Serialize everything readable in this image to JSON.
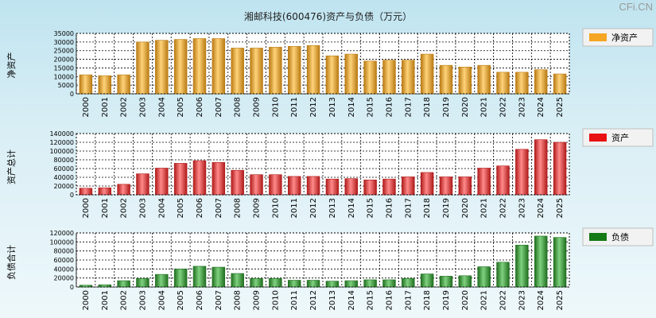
{
  "title": "湘邮科技(600476)资产与负债（万元）",
  "brand": "CFi.CN",
  "chart_data": [
    {
      "type": "bar",
      "ylabel": "净资产",
      "legend": "净资产",
      "legend_color": "#f5a623",
      "bar_light": "#ffd37a",
      "bar_dark": "#b97a12",
      "ylim": [
        0,
        35000
      ],
      "yticks": [
        0,
        5000,
        10000,
        15000,
        20000,
        25000,
        30000,
        35000
      ],
      "categories": [
        "2000",
        "2001",
        "2002",
        "2003",
        "2004",
        "2005",
        "2006",
        "2007",
        "2008",
        "2009",
        "2010",
        "2011",
        "2012",
        "2013",
        "2014",
        "2015",
        "2016",
        "2017",
        "2018",
        "2019",
        "2020",
        "2021",
        "2022",
        "2023",
        "2024",
        "2025"
      ],
      "values": [
        11000,
        10500,
        11000,
        30000,
        31000,
        31500,
        32000,
        32000,
        26500,
        26500,
        27000,
        27500,
        28000,
        22000,
        23000,
        19000,
        19500,
        19500,
        23000,
        16500,
        15500,
        16500,
        12500,
        12500,
        14000,
        11500
      ]
    },
    {
      "type": "bar",
      "ylabel": "资产总计",
      "legend": "资产",
      "legend_color": "#e81010",
      "bar_light": "#ff8a8a",
      "bar_dark": "#b01a1a",
      "ylim": [
        0,
        140000
      ],
      "yticks": [
        0,
        20000,
        40000,
        60000,
        80000,
        100000,
        120000,
        140000
      ],
      "categories": [
        "2000",
        "2001",
        "2002",
        "2003",
        "2004",
        "2005",
        "2006",
        "2007",
        "2008",
        "2009",
        "2010",
        "2011",
        "2012",
        "2013",
        "2014",
        "2015",
        "2016",
        "2017",
        "2018",
        "2019",
        "2020",
        "2021",
        "2022",
        "2023",
        "2024",
        "2025"
      ],
      "values": [
        15000,
        16000,
        24000,
        48000,
        61000,
        72000,
        78000,
        74000,
        56000,
        46000,
        46000,
        42000,
        42000,
        36000,
        37000,
        34000,
        36000,
        41000,
        51000,
        41000,
        41000,
        61000,
        66000,
        104000,
        126000,
        120000
      ]
    },
    {
      "type": "bar",
      "ylabel": "负债合计",
      "legend": "负债",
      "legend_color": "#157a15",
      "bar_light": "#7fd17f",
      "bar_dark": "#1f6e1f",
      "ylim": [
        0,
        120000
      ],
      "yticks": [
        0,
        20000,
        40000,
        60000,
        80000,
        100000,
        120000
      ],
      "categories": [
        "2000",
        "2001",
        "2002",
        "2003",
        "2004",
        "2005",
        "2006",
        "2007",
        "2008",
        "2009",
        "2010",
        "2011",
        "2012",
        "2013",
        "2014",
        "2015",
        "2016",
        "2017",
        "2018",
        "2019",
        "2020",
        "2021",
        "2022",
        "2023",
        "2024",
        "2025"
      ],
      "values": [
        4000,
        5000,
        14000,
        19000,
        28000,
        40000,
        46000,
        44000,
        30000,
        19000,
        19000,
        15000,
        15000,
        13000,
        14000,
        16000,
        16000,
        19000,
        29000,
        24000,
        25000,
        45000,
        55000,
        93000,
        113000,
        110000
      ]
    }
  ]
}
